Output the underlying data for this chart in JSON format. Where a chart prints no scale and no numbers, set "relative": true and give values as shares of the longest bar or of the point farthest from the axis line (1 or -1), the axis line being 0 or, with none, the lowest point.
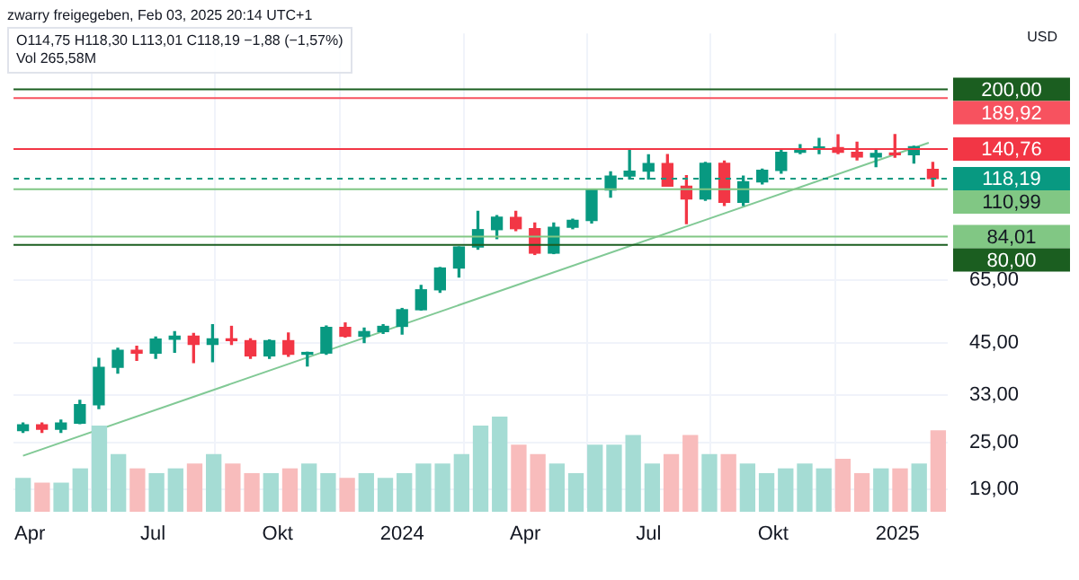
{
  "chart_data": [
    {
      "type": "candlestick",
      "annotations": [
        "zwarry freigegeben, Feb 03, 2025 20:14 UTC+1",
        "O114,75 H118,30 L113,01 C118,19 −1,88 (−1,57%)",
        "Vol 265,58M",
        "USD"
      ],
      "x": [
        "2023-03-27",
        "2023-04-10",
        "2023-04-24",
        "2023-05-08",
        "2023-05-22",
        "2023-06-05",
        "2023-06-19",
        "2023-07-03",
        "2023-07-17",
        "2023-07-31",
        "2023-08-14",
        "2023-08-28",
        "2023-09-11",
        "2023-09-25",
        "2023-10-09",
        "2023-10-23",
        "2023-11-06",
        "2023-11-20",
        "2023-12-04",
        "2023-12-18",
        "2024-01-01",
        "2024-01-15",
        "2024-01-29",
        "2024-02-12",
        "2024-02-26",
        "2024-03-11",
        "2024-03-25",
        "2024-04-08",
        "2024-04-22",
        "2024-05-06",
        "2024-05-20",
        "2024-06-03",
        "2024-06-17",
        "2024-07-01",
        "2024-07-15",
        "2024-07-29",
        "2024-08-12",
        "2024-08-26",
        "2024-09-09",
        "2024-09-23",
        "2024-10-07",
        "2024-10-21",
        "2024-11-04",
        "2024-11-18",
        "2024-12-02",
        "2024-12-16",
        "2024-12-30",
        "2025-01-13",
        "2025-01-27"
      ],
      "ohlc": [
        [
          26.8,
          28,
          26.5,
          27.7
        ],
        [
          27.7,
          28,
          26.5,
          27
        ],
        [
          27,
          28.5,
          26.5,
          28
        ],
        [
          28,
          32,
          27.9,
          31.2
        ],
        [
          31.2,
          41,
          30.5,
          38.9
        ],
        [
          38.9,
          43.5,
          37.6,
          43
        ],
        [
          43,
          44,
          40.5,
          42.3
        ],
        [
          42.3,
          46.5,
          41,
          45.9
        ],
        [
          45.9,
          48,
          42.5,
          46.7
        ],
        [
          46.7,
          47.5,
          40,
          44.5
        ],
        [
          44.5,
          50,
          40.2,
          46
        ],
        [
          46,
          49.5,
          44.5,
          45.5
        ],
        [
          45.5,
          46,
          41,
          41.6
        ],
        [
          41.6,
          45.7,
          41,
          45.5
        ],
        [
          45.5,
          47.6,
          41.5,
          42
        ],
        [
          42,
          42.5,
          39.2,
          42.3
        ],
        [
          42.3,
          49.6,
          42,
          49.2
        ],
        [
          49.2,
          50.5,
          46.5,
          46.7
        ],
        [
          46.7,
          49,
          45,
          48
        ],
        [
          48,
          50,
          47.5,
          49.5
        ],
        [
          49.5,
          55,
          47.3,
          54.6
        ],
        [
          54.6,
          63,
          54.5,
          61.4
        ],
        [
          61.4,
          70,
          60.5,
          69.8
        ],
        [
          69.8,
          79,
          66.2,
          79
        ],
        [
          79,
          97.4,
          78,
          87.5
        ],
        [
          87.5,
          95,
          83,
          94.2
        ],
        [
          94,
          97.4,
          87,
          88
        ],
        [
          88,
          91,
          75.6,
          76.2
        ],
        [
          76.2,
          91,
          76,
          88.7
        ],
        [
          88.7,
          93,
          88,
          92.4
        ],
        [
          92.4,
          111,
          91,
          110.5
        ],
        [
          110.5,
          123,
          106,
          120
        ],
        [
          120,
          140.76,
          118,
          123.5
        ],
        [
          123.5,
          136,
          118,
          129.2
        ],
        [
          129.2,
          136.2,
          113,
          113
        ],
        [
          113,
          120.2,
          90.7,
          104.8
        ],
        [
          104.8,
          130,
          104,
          129.4
        ],
        [
          129.4,
          131,
          100.9,
          102.8
        ],
        [
          102.8,
          120,
          100.9,
          116
        ],
        [
          116,
          125,
          114.5,
          124.2
        ],
        [
          124,
          139.6,
          122,
          138
        ],
        [
          138,
          144.4,
          137,
          141
        ],
        [
          141,
          149.8,
          137,
          141.9
        ],
        [
          141.9,
          152.9,
          137,
          138
        ],
        [
          138,
          146.5,
          132,
          134.3
        ],
        [
          134.3,
          141,
          126.9,
          137
        ],
        [
          137,
          153.1,
          134,
          136
        ],
        [
          136,
          143,
          129.5,
          142.6
        ],
        [
          124.8,
          130,
          113,
          118.19
        ]
      ],
      "colors": [
        "#089981",
        "#f23645",
        "#089981",
        "#089981",
        "#089981",
        "#089981",
        "#f23645",
        "#089981",
        "#089981",
        "#f23645",
        "#089981",
        "#f23645",
        "#f23645",
        "#089981",
        "#f23645",
        "#089981",
        "#089981",
        "#f23645",
        "#089981",
        "#089981",
        "#089981",
        "#089981",
        "#089981",
        "#089981",
        "#089981",
        "#089981",
        "#f23645",
        "#f23645",
        "#089981",
        "#089981",
        "#089981",
        "#089981",
        "#089981",
        "#089981",
        "#f23645",
        "#f23645",
        "#089981",
        "#f23645",
        "#089981",
        "#089981",
        "#089981",
        "#089981",
        "#089981",
        "#f23645",
        "#f23645",
        "#089981",
        "#f23645",
        "#089981",
        "#f23645"
      ],
      "series": [
        {
          "type": "line",
          "x": [
            "2023-03-27",
            "2025-01-24"
          ],
          "values": [
            23.1,
            146
          ],
          "color": "#81c995"
        }
      ],
      "log": "y",
      "xlim": [
        "2023-03-20",
        "2025-02-07"
      ],
      "xticks": [
        {
          "value": "2023-04-01",
          "label": "Apr"
        },
        {
          "value": "2023-07-01",
          "label": "Jul"
        },
        {
          "value": "2023-10-01",
          "label": "Okt"
        },
        {
          "value": "2024-01-01",
          "label": "2024"
        },
        {
          "value": "2024-04-01",
          "label": "Apr"
        },
        {
          "value": "2024-07-01",
          "label": "Jul"
        },
        {
          "value": "2024-10-01",
          "label": "Okt"
        },
        {
          "value": "2025-01-01",
          "label": "2025"
        }
      ],
      "ylim": [
        17,
        278
      ],
      "yticks": [
        {
          "value": 19,
          "label": "19,00"
        },
        {
          "value": 25,
          "label": "25,00"
        },
        {
          "value": 33,
          "label": "33,00"
        },
        {
          "value": 45,
          "label": "45,00"
        },
        {
          "value": 65,
          "label": "65,00"
        }
      ],
      "grid": true,
      "ref_lines": [
        {
          "axis": "y",
          "value": 200,
          "label": "200,00",
          "color": "#1b5e20"
        },
        {
          "axis": "y",
          "value": 189.92,
          "label": "189,92",
          "color": "#f7525f"
        },
        {
          "axis": "y",
          "value": 140.76,
          "label": "140,76",
          "color": "#f23645"
        },
        {
          "axis": "y",
          "value": 118.19,
          "label": "118,19",
          "color": "#089981",
          "line_style": "dashed"
        },
        {
          "axis": "y",
          "value": 110.99,
          "label": "110,99",
          "color": "#81c784"
        },
        {
          "axis": "y",
          "value": 84.01,
          "label": "84,01",
          "color": "#81c784"
        },
        {
          "axis": "y",
          "value": 80,
          "label": "80,00",
          "color": "#1b5e20"
        }
      ]
    },
    {
      "type": "bar",
      "relative": true,
      "categories": [
        null,
        null,
        null,
        null,
        null,
        null,
        null,
        null,
        null,
        null,
        null,
        null,
        null,
        null,
        null,
        null,
        null,
        null,
        null,
        null,
        null,
        null,
        null,
        null,
        null,
        null,
        null,
        null,
        null,
        null,
        null,
        null,
        null,
        null,
        null,
        null,
        null,
        null,
        null,
        null,
        null,
        null,
        null,
        null,
        null,
        null,
        null,
        null,
        null
      ],
      "values": [
        0.35,
        0.3,
        0.3,
        0.45,
        0.9,
        0.6,
        0.45,
        0.4,
        0.45,
        0.5,
        0.6,
        0.5,
        0.4,
        0.4,
        0.45,
        0.5,
        0.4,
        0.35,
        0.4,
        0.35,
        0.4,
        0.5,
        0.5,
        0.6,
        0.9,
        1,
        0.7,
        0.6,
        0.5,
        0.4,
        0.7,
        0.7,
        0.8,
        0.5,
        0.6,
        0.8,
        0.6,
        0.6,
        0.5,
        0.4,
        0.45,
        0.5,
        0.45,
        0.55,
        0.4,
        0.45,
        0.45,
        0.5,
        0.85
      ],
      "colors": [
        "#a5dcd4",
        "#f8bcbc",
        "#a5dcd4",
        "#a5dcd4",
        "#a5dcd4",
        "#a5dcd4",
        "#f8bcbc",
        "#a5dcd4",
        "#a5dcd4",
        "#f8bcbc",
        "#a5dcd4",
        "#f8bcbc",
        "#f8bcbc",
        "#a5dcd4",
        "#f8bcbc",
        "#a5dcd4",
        "#a5dcd4",
        "#f8bcbc",
        "#a5dcd4",
        "#a5dcd4",
        "#a5dcd4",
        "#a5dcd4",
        "#a5dcd4",
        "#a5dcd4",
        "#a5dcd4",
        "#a5dcd4",
        "#f8bcbc",
        "#f8bcbc",
        "#a5dcd4",
        "#a5dcd4",
        "#a5dcd4",
        "#a5dcd4",
        "#a5dcd4",
        "#a5dcd4",
        "#f8bcbc",
        "#f8bcbc",
        "#a5dcd4",
        "#f8bcbc",
        "#a5dcd4",
        "#a5dcd4",
        "#a5dcd4",
        "#a5dcd4",
        "#a5dcd4",
        "#f8bcbc",
        "#f8bcbc",
        "#a5dcd4",
        "#f8bcbc",
        "#a5dcd4",
        "#f8bcbc"
      ]
    }
  ]
}
